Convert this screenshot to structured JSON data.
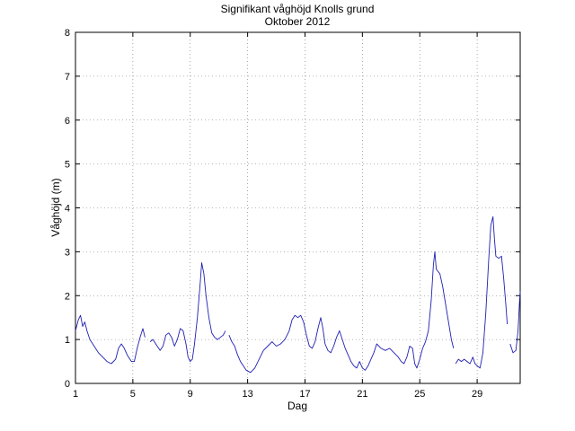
{
  "chart_data": {
    "type": "line",
    "title": "Signifikant våghöjd Knolls grund",
    "subtitle": "Oktober 2012",
    "xlabel": "Dag",
    "ylabel": "Våghöjd (m)",
    "xlim": [
      1,
      32
    ],
    "ylim": [
      0,
      8
    ],
    "xticks": [
      1,
      5,
      9,
      13,
      17,
      21,
      25,
      29
    ],
    "yticks": [
      0,
      1,
      2,
      3,
      4,
      5,
      6,
      7,
      8
    ],
    "grid": true,
    "colors": {
      "series": "#1f1fb4"
    },
    "series": [
      {
        "segments": [
          [
            [
              1.0,
              1.2
            ],
            [
              1.2,
              1.45
            ],
            [
              1.35,
              1.55
            ],
            [
              1.5,
              1.3
            ],
            [
              1.65,
              1.4
            ],
            [
              1.8,
              1.2
            ],
            [
              2.0,
              1.0
            ],
            [
              2.3,
              0.85
            ],
            [
              2.6,
              0.7
            ],
            [
              2.9,
              0.6
            ],
            [
              3.2,
              0.5
            ],
            [
              3.5,
              0.45
            ],
            [
              3.8,
              0.55
            ],
            [
              4.0,
              0.8
            ],
            [
              4.2,
              0.9
            ],
            [
              4.4,
              0.8
            ],
            [
              4.6,
              0.65
            ],
            [
              4.9,
              0.5
            ],
            [
              5.1,
              0.5
            ],
            [
              5.3,
              0.8
            ],
            [
              5.5,
              1.05
            ],
            [
              5.7,
              1.25
            ],
            [
              5.85,
              1.05
            ]
          ],
          [
            [
              6.2,
              0.95
            ],
            [
              6.4,
              1.0
            ],
            [
              6.7,
              0.85
            ],
            [
              6.9,
              0.75
            ],
            [
              7.1,
              0.85
            ],
            [
              7.3,
              1.1
            ],
            [
              7.5,
              1.15
            ],
            [
              7.7,
              1.05
            ],
            [
              7.9,
              0.85
            ],
            [
              8.1,
              1.0
            ],
            [
              8.3,
              1.25
            ],
            [
              8.5,
              1.2
            ],
            [
              8.7,
              0.9
            ],
            [
              8.85,
              0.6
            ],
            [
              9.0,
              0.5
            ],
            [
              9.15,
              0.55
            ],
            [
              9.3,
              0.9
            ],
            [
              9.5,
              1.5
            ],
            [
              9.7,
              2.3
            ],
            [
              9.8,
              2.75
            ],
            [
              9.95,
              2.5
            ],
            [
              10.1,
              2.0
            ],
            [
              10.3,
              1.5
            ],
            [
              10.5,
              1.15
            ],
            [
              10.7,
              1.05
            ],
            [
              10.9,
              1.0
            ],
            [
              11.1,
              1.05
            ],
            [
              11.3,
              1.1
            ],
            [
              11.45,
              1.2
            ]
          ],
          [
            [
              11.7,
              1.1
            ],
            [
              11.9,
              0.95
            ],
            [
              12.1,
              0.85
            ],
            [
              12.3,
              0.65
            ],
            [
              12.5,
              0.5
            ],
            [
              12.7,
              0.4
            ],
            [
              12.9,
              0.3
            ],
            [
              13.2,
              0.25
            ],
            [
              13.5,
              0.35
            ],
            [
              13.8,
              0.55
            ],
            [
              14.1,
              0.75
            ],
            [
              14.4,
              0.85
            ],
            [
              14.7,
              0.95
            ],
            [
              15.0,
              0.85
            ],
            [
              15.3,
              0.9
            ],
            [
              15.6,
              1.0
            ],
            [
              15.9,
              1.2
            ],
            [
              16.1,
              1.45
            ],
            [
              16.3,
              1.55
            ],
            [
              16.5,
              1.5
            ],
            [
              16.7,
              1.55
            ],
            [
              16.9,
              1.4
            ],
            [
              17.1,
              1.1
            ],
            [
              17.3,
              0.85
            ],
            [
              17.5,
              0.8
            ],
            [
              17.7,
              0.95
            ],
            [
              17.9,
              1.25
            ],
            [
              18.1,
              1.5
            ],
            [
              18.25,
              1.25
            ],
            [
              18.4,
              0.9
            ],
            [
              18.6,
              0.75
            ],
            [
              18.8,
              0.7
            ],
            [
              19.0,
              0.85
            ],
            [
              19.2,
              1.05
            ],
            [
              19.4,
              1.2
            ],
            [
              19.6,
              1.0
            ],
            [
              19.8,
              0.8
            ],
            [
              20.0,
              0.65
            ],
            [
              20.2,
              0.5
            ],
            [
              20.4,
              0.4
            ],
            [
              20.6,
              0.35
            ],
            [
              20.8,
              0.5
            ],
            [
              21.0,
              0.35
            ],
            [
              21.2,
              0.3
            ],
            [
              21.4,
              0.4
            ],
            [
              21.6,
              0.55
            ],
            [
              21.8,
              0.7
            ],
            [
              22.0,
              0.9
            ],
            [
              22.3,
              0.8
            ],
            [
              22.6,
              0.75
            ],
            [
              22.9,
              0.8
            ],
            [
              23.2,
              0.7
            ],
            [
              23.5,
              0.6
            ],
            [
              23.7,
              0.5
            ],
            [
              23.9,
              0.45
            ],
            [
              24.1,
              0.6
            ],
            [
              24.3,
              0.85
            ],
            [
              24.5,
              0.8
            ],
            [
              24.65,
              0.45
            ],
            [
              24.8,
              0.35
            ],
            [
              25.0,
              0.55
            ],
            [
              25.2,
              0.8
            ],
            [
              25.4,
              0.95
            ],
            [
              25.6,
              1.2
            ],
            [
              25.8,
              1.9
            ],
            [
              25.95,
              2.7
            ],
            [
              26.05,
              3.0
            ],
            [
              26.15,
              2.6
            ],
            [
              26.4,
              2.5
            ],
            [
              26.6,
              2.2
            ],
            [
              26.8,
              1.8
            ],
            [
              27.0,
              1.4
            ],
            [
              27.2,
              1.0
            ],
            [
              27.35,
              0.8
            ]
          ],
          [
            [
              27.5,
              0.45
            ],
            [
              27.7,
              0.55
            ],
            [
              27.9,
              0.5
            ],
            [
              28.1,
              0.55
            ],
            [
              28.3,
              0.5
            ],
            [
              28.5,
              0.45
            ],
            [
              28.7,
              0.6
            ],
            [
              28.85,
              0.45
            ],
            [
              29.0,
              0.4
            ],
            [
              29.2,
              0.35
            ],
            [
              29.4,
              0.7
            ],
            [
              29.6,
              1.6
            ],
            [
              29.8,
              2.8
            ],
            [
              29.95,
              3.6
            ],
            [
              30.1,
              3.8
            ],
            [
              30.2,
              3.3
            ],
            [
              30.3,
              2.9
            ],
            [
              30.5,
              2.85
            ],
            [
              30.7,
              2.9
            ],
            [
              30.85,
              2.4
            ],
            [
              31.0,
              1.8
            ],
            [
              31.1,
              1.35
            ]
          ],
          [
            [
              31.3,
              0.9
            ],
            [
              31.5,
              0.7
            ],
            [
              31.7,
              0.75
            ],
            [
              31.85,
              1.2
            ],
            [
              31.95,
              1.85
            ],
            [
              32.0,
              2.1
            ]
          ]
        ]
      }
    ]
  }
}
